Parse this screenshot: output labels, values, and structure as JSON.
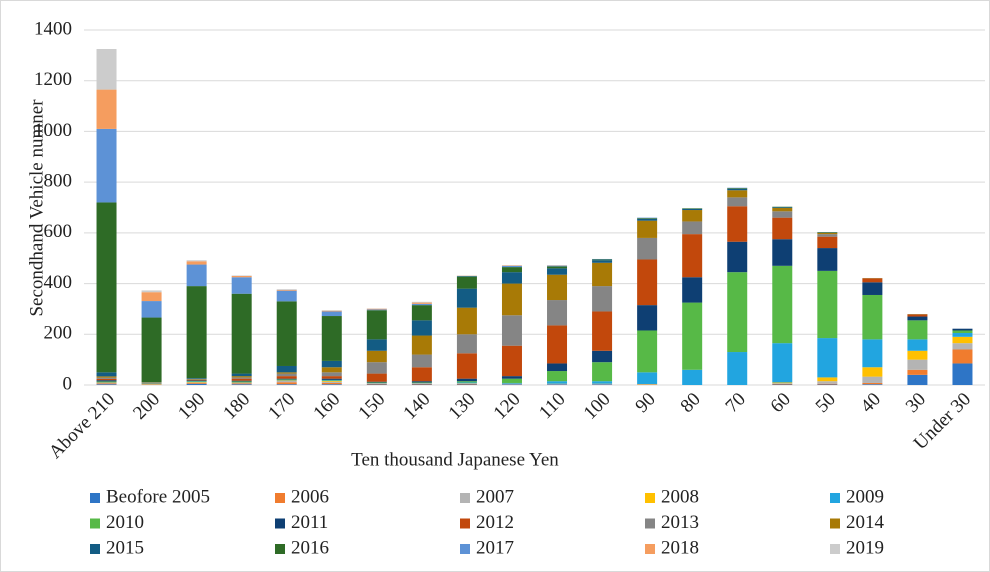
{
  "chart_data": {
    "type": "stacked_bar",
    "y_label": "Secondhand Vehicle numner",
    "x_label": "Ten thousand Japanese Yen",
    "categories": [
      "Above 210",
      "200",
      "190",
      "180",
      "170",
      "160",
      "150",
      "140",
      "130",
      "120",
      "110",
      "100",
      "90",
      "80",
      "70",
      "60",
      "50",
      "40",
      "30",
      "Under 30"
    ],
    "ylim": [
      0,
      1400
    ],
    "yticks": [
      0,
      200,
      400,
      600,
      800,
      1000,
      1200,
      1400
    ],
    "grid": true,
    "legend": "bottom",
    "series": [
      {
        "name": "Beofore 2005",
        "color": "#2e75c6",
        "values": [
          3,
          1,
          5,
          3,
          3,
          3,
          2,
          2,
          2,
          2,
          2,
          2,
          1,
          0,
          0,
          2,
          2,
          3,
          40,
          85
        ]
      },
      {
        "name": "2006",
        "color": "#f07c2e",
        "values": [
          3,
          1,
          3,
          3,
          8,
          5,
          2,
          2,
          2,
          1,
          1,
          1,
          1,
          0,
          0,
          2,
          3,
          5,
          20,
          55
        ]
      },
      {
        "name": "2007",
        "color": "#b4b4b4",
        "values": [
          2,
          1,
          2,
          2,
          5,
          5,
          2,
          2,
          2,
          1,
          1,
          1,
          1,
          0,
          0,
          3,
          10,
          25,
          40,
          25
        ]
      },
      {
        "name": "2008",
        "color": "#ffc000",
        "values": [
          2,
          1,
          2,
          2,
          2,
          3,
          1,
          1,
          1,
          1,
          1,
          1,
          1,
          0,
          0,
          3,
          15,
          37,
          35,
          25
        ]
      },
      {
        "name": "2009",
        "color": "#22a5e0",
        "values": [
          2,
          1,
          2,
          2,
          2,
          2,
          1,
          1,
          3,
          3,
          10,
          10,
          46,
          60,
          130,
          155,
          155,
          110,
          45,
          15
        ]
      },
      {
        "name": "2010",
        "color": "#57b947",
        "values": [
          2,
          1,
          2,
          2,
          2,
          2,
          2,
          2,
          5,
          17,
          40,
          75,
          165,
          265,
          315,
          305,
          265,
          175,
          75,
          10
        ]
      },
      {
        "name": "2011",
        "color": "#0e3f73",
        "values": [
          5,
          1,
          2,
          3,
          3,
          5,
          3,
          5,
          10,
          10,
          30,
          45,
          100,
          100,
          120,
          105,
          90,
          50,
          15,
          7
        ]
      },
      {
        "name": "2012",
        "color": "#c2480c",
        "values": [
          5,
          1,
          2,
          8,
          10,
          10,
          32,
          55,
          100,
          120,
          150,
          155,
          180,
          170,
          140,
          85,
          45,
          15,
          8,
          0
        ]
      },
      {
        "name": "2013",
        "color": "#858585",
        "values": [
          5,
          1,
          2,
          5,
          10,
          15,
          45,
          50,
          75,
          120,
          100,
          100,
          85,
          50,
          35,
          25,
          10,
          1,
          1,
          0
        ]
      },
      {
        "name": "2014",
        "color": "#a87a06",
        "values": [
          5,
          1,
          2,
          5,
          5,
          20,
          45,
          75,
          105,
          125,
          100,
          92,
          68,
          45,
          28,
          13,
          5,
          1,
          1,
          0
        ]
      },
      {
        "name": "2015",
        "color": "#135c84",
        "values": [
          16,
          1,
          3,
          10,
          25,
          25,
          45,
          60,
          75,
          45,
          25,
          10,
          7,
          5,
          5,
          3,
          1,
          0,
          0,
          0
        ]
      },
      {
        "name": "2016",
        "color": "#2e6b26",
        "values": [
          670,
          255,
          363,
          315,
          255,
          177,
          115,
          60,
          48,
          20,
          8,
          3,
          3,
          2,
          3,
          2,
          2,
          0,
          0,
          0
        ]
      },
      {
        "name": "2017",
        "color": "#5d92d6",
        "values": [
          290,
          65,
          85,
          65,
          42,
          18,
          3,
          5,
          2,
          5,
          3,
          2,
          2,
          0,
          2,
          0,
          0,
          0,
          0,
          0
        ]
      },
      {
        "name": "2018",
        "color": "#f59d5f",
        "values": [
          155,
          35,
          13,
          5,
          3,
          3,
          3,
          5,
          1,
          2,
          1,
          0,
          0,
          0,
          0,
          0,
          0,
          0,
          0,
          0
        ]
      },
      {
        "name": "2019",
        "color": "#cccccc",
        "values": [
          160,
          7,
          4,
          2,
          3,
          2,
          1,
          3,
          1,
          1,
          0,
          0,
          0,
          0,
          0,
          0,
          0,
          0,
          0,
          0
        ]
      }
    ]
  }
}
